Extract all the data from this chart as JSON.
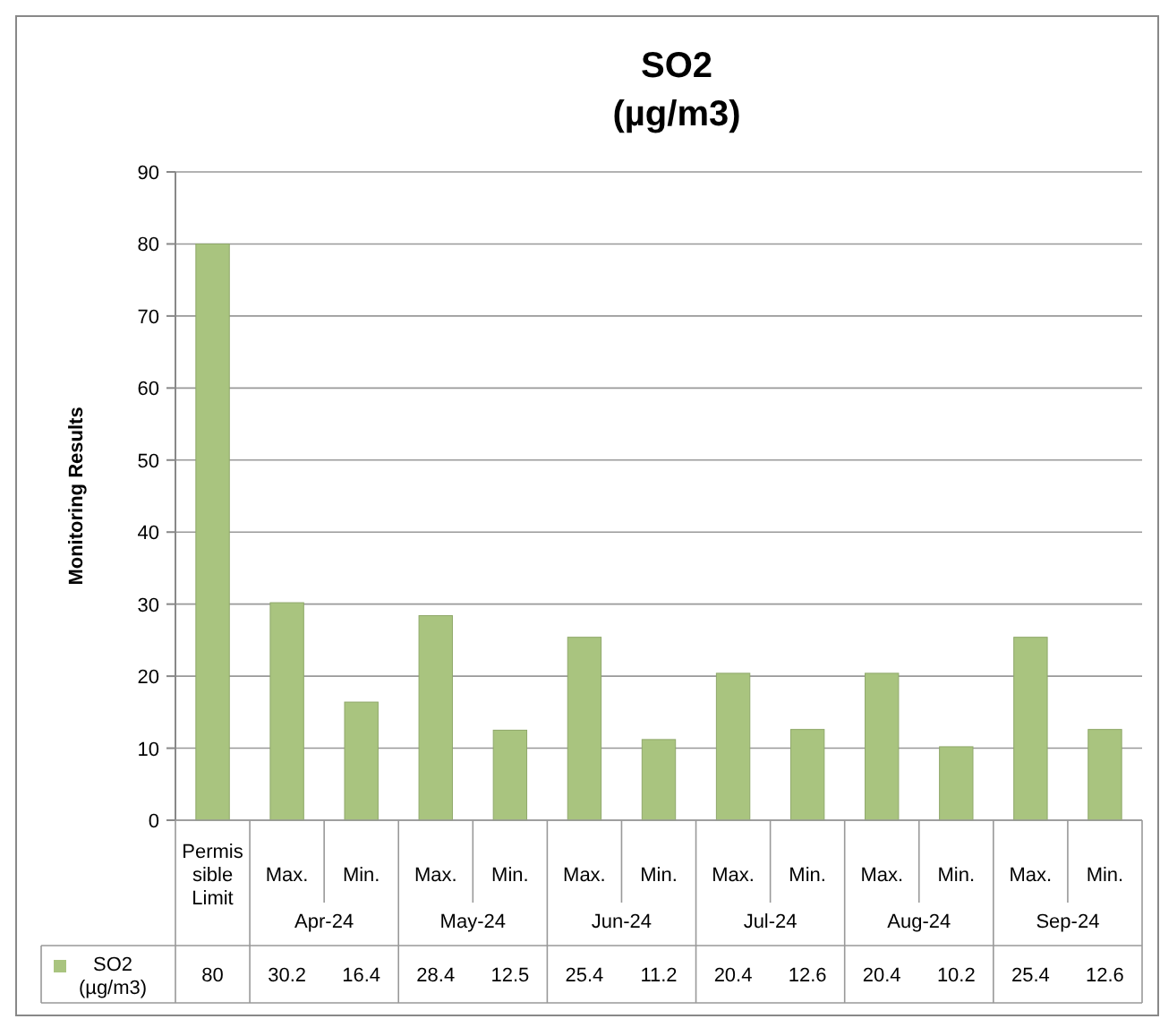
{
  "chart_data": {
    "type": "bar",
    "title": "SO2",
    "subtitle": "(µg/m3)",
    "ylabel": "Monitoring Results",
    "categories": [
      "Permissible Limit",
      "Max.",
      "Min.",
      "Max.",
      "Min.",
      "Max.",
      "Min.",
      "Max.",
      "Min.",
      "Max.",
      "Min.",
      "Max.",
      "Min."
    ],
    "annotations": [
      "Apr-24",
      "May-24",
      "Jun-24",
      "Jul-24",
      "Aug-24",
      "Sep-24"
    ],
    "series": [
      {
        "name": "SO2 (µg/m3)",
        "color": "#a9c47f",
        "values": [
          80,
          30.2,
          16.4,
          28.4,
          12.5,
          25.4,
          11.2,
          20.4,
          12.6,
          20.4,
          10.2,
          25.4,
          12.6
        ]
      }
    ],
    "ylim": [
      0,
      90
    ],
    "yticks": [
      0,
      10,
      20,
      30,
      40,
      50,
      60,
      70,
      80,
      90
    ],
    "grid": "y",
    "legend": "bottom left",
    "data_labels": true
  }
}
